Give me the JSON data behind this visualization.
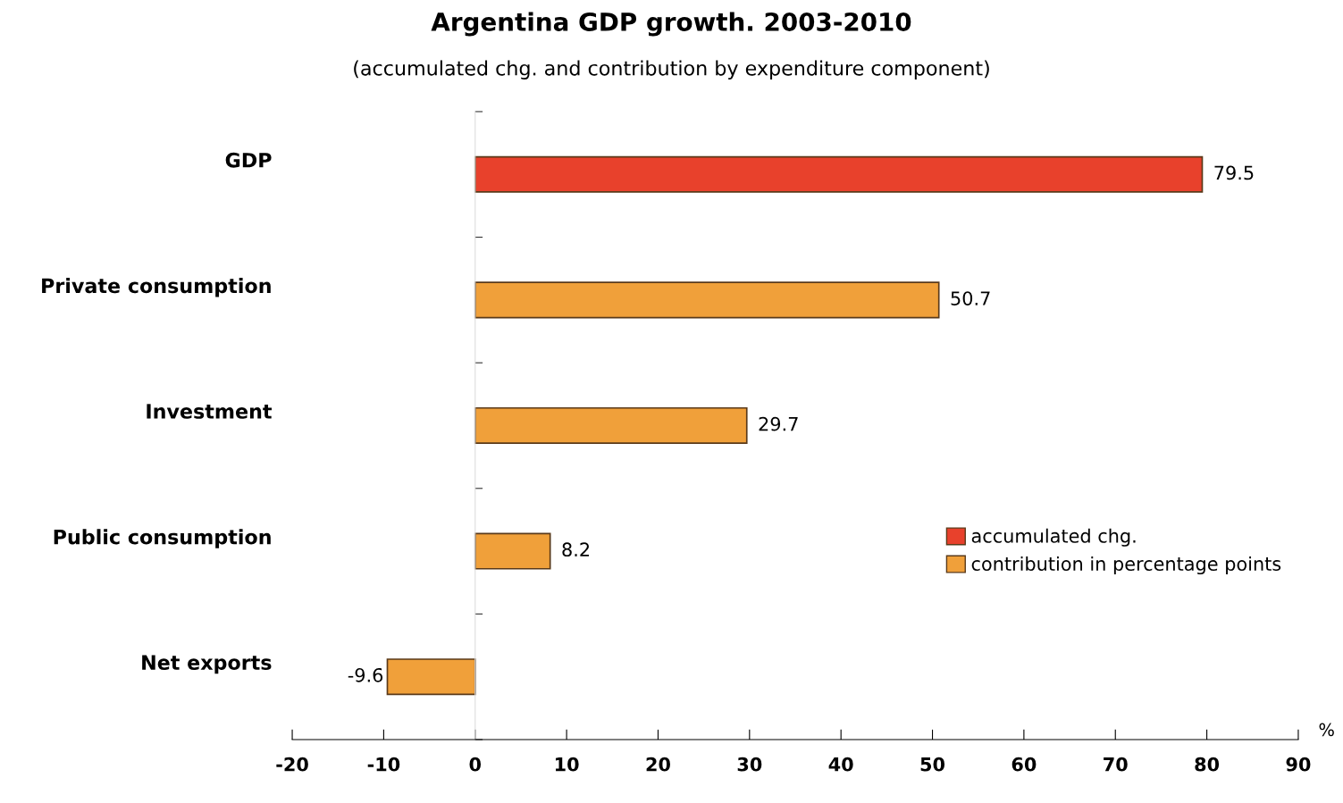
{
  "chart_data": {
    "type": "bar",
    "orientation": "horizontal",
    "title": "Argentina GDP growth. 2003-2010",
    "subtitle": "(accumulated chg. and contribution by expenditure component)",
    "xlabel": "%",
    "categories": [
      "GDP",
      "Private consumption",
      "Investment",
      "Public consumption",
      "Net exports"
    ],
    "series": [
      {
        "name": "accumulated chg.",
        "color": "#e8412c",
        "values": [
          79.5,
          null,
          null,
          null,
          null
        ]
      },
      {
        "name": "contribution in percentage points",
        "color": "#f0a03a",
        "values": [
          null,
          50.7,
          29.7,
          8.2,
          -9.6
        ]
      }
    ],
    "xlim": [
      -20,
      90
    ],
    "xticks": [
      -20,
      -10,
      0,
      10,
      20,
      30,
      40,
      50,
      60,
      70,
      80,
      90
    ],
    "data_labels": true,
    "legend": "right"
  }
}
